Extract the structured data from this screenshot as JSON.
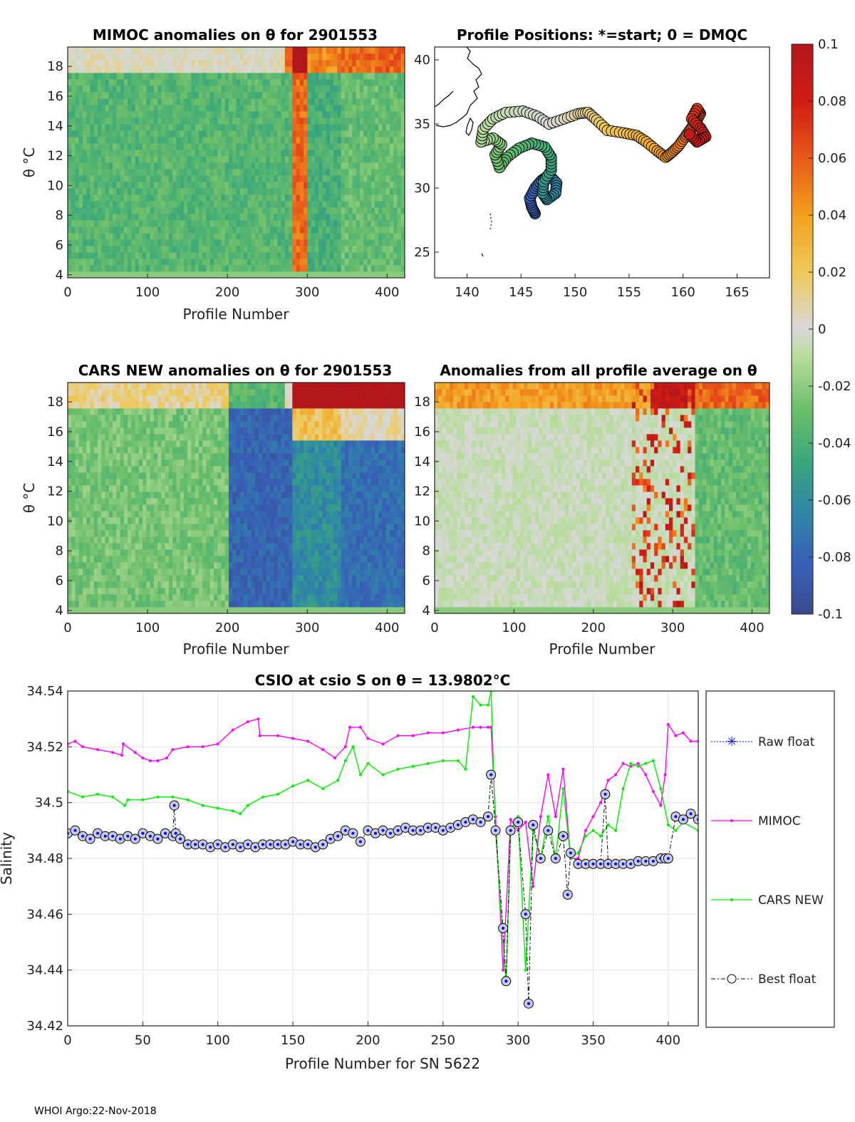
{
  "footer": "WHOI Argo:22-Nov-2018",
  "colors": {
    "mimoc": "#ff00ff",
    "cars": "#00ee00",
    "best": "#000000",
    "raw": "#0000ff",
    "marker_fill": "#c8cbe6",
    "grid": "#e3e3e3"
  },
  "colormap_stops": [
    "#3a4b8e",
    "#3860b8",
    "#2f87a6",
    "#3aa87a",
    "#6cbf6a",
    "#b7dc9a",
    "#d8d8d8",
    "#eec95a",
    "#f3a01e",
    "#e8581a",
    "#d01c14",
    "#b2171c"
  ],
  "colorbar": {
    "min": -0.1,
    "max": 0.1,
    "ticks": [
      "0.1",
      "0.08",
      "0.06",
      "0.04",
      "0.02",
      "0",
      "-0.02",
      "-0.04",
      "-0.06",
      "-0.08",
      "-0.1"
    ]
  },
  "chart_data": [
    {
      "id": "mimoc",
      "type": "heatmap",
      "title": "MIMOC anomalies on θ  for 2901553",
      "xlabel": "Profile Number",
      "ylabel": "θ °C",
      "xlim": [
        0,
        422
      ],
      "ylim": [
        3.8,
        19.3
      ],
      "xticks": [
        "0",
        "100",
        "200",
        "300",
        "400"
      ],
      "xtick_values": [
        0,
        100,
        200,
        300,
        400
      ],
      "yticks": [
        "4",
        "6",
        "8",
        "10",
        "12",
        "14",
        "16",
        "18"
      ],
      "ytick_values": [
        4,
        6,
        8,
        10,
        12,
        14,
        16,
        18
      ],
      "zones": [
        [
          0,
          280,
          -0.035
        ],
        [
          280,
          300,
          0.06
        ],
        [
          300,
          340,
          -0.04
        ],
        [
          340,
          422,
          -0.03
        ]
      ]
    },
    {
      "id": "positions",
      "type": "scatter",
      "title": "Profile Positions: *=start; 0 = DMQC",
      "xlim": [
        137,
        168
      ],
      "ylim": [
        23,
        41
      ],
      "xticks": [
        "140",
        "145",
        "150",
        "155",
        "160",
        "165"
      ],
      "xtick_values": [
        140,
        145,
        150,
        155,
        160,
        165
      ],
      "yticks": [
        "25",
        "30",
        "35",
        "40"
      ],
      "ytick_values": [
        25,
        30,
        35,
        40
      ],
      "track": [
        [
          146.3,
          28.0
        ],
        [
          146.0,
          28.5
        ],
        [
          145.8,
          29.2
        ],
        [
          146.3,
          30.0
        ],
        [
          146.9,
          30.6
        ],
        [
          147.6,
          31.0
        ],
        [
          148.3,
          30.4
        ],
        [
          148.2,
          29.6
        ],
        [
          147.4,
          29.1
        ],
        [
          147.0,
          29.6
        ],
        [
          147.1,
          30.5
        ],
        [
          147.8,
          31.4
        ],
        [
          147.8,
          32.4
        ],
        [
          147.2,
          33.2
        ],
        [
          146.0,
          33.5
        ],
        [
          144.8,
          33.1
        ],
        [
          143.7,
          32.4
        ],
        [
          143.0,
          31.6
        ],
        [
          142.6,
          32.6
        ],
        [
          143.2,
          33.4
        ],
        [
          142.4,
          33.9
        ],
        [
          141.3,
          33.6
        ],
        [
          141.5,
          34.6
        ],
        [
          142.4,
          35.4
        ],
        [
          143.6,
          35.9
        ],
        [
          145.2,
          36.0
        ],
        [
          146.5,
          35.6
        ],
        [
          147.6,
          35.0
        ],
        [
          149.0,
          35.4
        ],
        [
          150.3,
          35.8
        ],
        [
          151.2,
          35.9
        ],
        [
          152.0,
          35.3
        ],
        [
          153.0,
          34.5
        ],
        [
          154.5,
          34.3
        ],
        [
          155.7,
          34.1
        ],
        [
          156.6,
          33.6
        ],
        [
          157.6,
          32.9
        ],
        [
          158.4,
          32.4
        ],
        [
          159.0,
          32.8
        ],
        [
          159.6,
          33.3
        ],
        [
          160.2,
          34.0
        ],
        [
          160.7,
          34.6
        ],
        [
          161.2,
          35.2
        ],
        [
          161.6,
          35.8
        ],
        [
          161.3,
          36.2
        ],
        [
          160.8,
          35.4
        ],
        [
          161.6,
          34.7
        ],
        [
          162.1,
          34.0
        ],
        [
          161.3,
          33.6
        ],
        [
          160.6,
          34.2
        ]
      ]
    },
    {
      "id": "cars",
      "type": "heatmap",
      "title": "CARS NEW anomalies on θ for 2901553",
      "xlabel": "Profile Number",
      "ylabel": "θ °C",
      "xlim": [
        0,
        422
      ],
      "ylim": [
        3.8,
        19.3
      ],
      "xticks": [
        "0",
        "100",
        "200",
        "300",
        "400"
      ],
      "xtick_values": [
        0,
        100,
        200,
        300,
        400
      ],
      "yticks": [
        "4",
        "6",
        "8",
        "10",
        "12",
        "14",
        "16",
        "18"
      ],
      "ytick_values": [
        4,
        6,
        8,
        10,
        12,
        14,
        16,
        18
      ],
      "zones": [
        [
          0,
          200,
          -0.025
        ],
        [
          200,
          280,
          -0.08
        ],
        [
          280,
          340,
          -0.06
        ],
        [
          340,
          422,
          -0.075
        ]
      ]
    },
    {
      "id": "allavg",
      "type": "heatmap",
      "title": "Anomalies from all profile average on θ",
      "xlabel": "Profile Number",
      "xlim": [
        0,
        422
      ],
      "ylim": [
        3.8,
        19.3
      ],
      "xticks": [
        "0",
        "100",
        "200",
        "300",
        "400"
      ],
      "xtick_values": [
        0,
        100,
        200,
        300,
        400
      ],
      "yticks": [
        "4",
        "6",
        "8",
        "10",
        "12",
        "14",
        "16",
        "18"
      ],
      "ytick_values": [
        4,
        6,
        8,
        10,
        12,
        14,
        16,
        18
      ],
      "zones": [
        [
          0,
          330,
          0.0
        ],
        [
          330,
          422,
          -0.03
        ]
      ]
    },
    {
      "id": "salinity",
      "type": "line",
      "title": "CSIO at csio S on θ = 13.9802°C",
      "xlabel": "Profile Number for SN 5622",
      "ylabel": "Salinity",
      "xlim": [
        0,
        420
      ],
      "ylim": [
        34.42,
        34.54
      ],
      "xticks": [
        "0",
        "50",
        "100",
        "150",
        "200",
        "250",
        "300",
        "350",
        "400"
      ],
      "xtick_values": [
        0,
        50,
        100,
        150,
        200,
        250,
        300,
        350,
        400
      ],
      "yticks": [
        "34.42",
        "34.44",
        "34.46",
        "34.48",
        "34.5",
        "34.52",
        "34.54"
      ],
      "ytick_values": [
        34.42,
        34.44,
        34.46,
        34.48,
        34.5,
        34.52,
        34.54
      ],
      "legend": [
        "Raw float",
        "MIMOC",
        "CARS NEW",
        "Best float"
      ],
      "series": [
        {
          "name": "MIMOC",
          "x": [
            0,
            5,
            10,
            20,
            30,
            36,
            37,
            45,
            50,
            55,
            60,
            66,
            70,
            80,
            90,
            100,
            110,
            120,
            127,
            128,
            140,
            150,
            160,
            170,
            178,
            185,
            188,
            195,
            200,
            210,
            220,
            230,
            240,
            250,
            260,
            270,
            275,
            280,
            282,
            285,
            290,
            295,
            300,
            305,
            310,
            315,
            320,
            325,
            330,
            335,
            340,
            345,
            350,
            355,
            360,
            365,
            370,
            375,
            380,
            385,
            390,
            395,
            398,
            400,
            405,
            410,
            415,
            420
          ],
          "y": [
            34.521,
            34.522,
            34.52,
            34.519,
            34.518,
            34.517,
            34.521,
            34.518,
            34.516,
            34.515,
            34.515,
            34.516,
            34.519,
            34.52,
            34.52,
            34.521,
            34.526,
            34.529,
            34.53,
            34.524,
            34.524,
            34.523,
            34.522,
            34.519,
            34.516,
            34.52,
            34.527,
            34.527,
            34.523,
            34.521,
            34.524,
            34.524,
            34.525,
            34.525,
            34.526,
            34.527,
            34.527,
            34.527,
            34.527,
            34.495,
            34.44,
            34.494,
            34.49,
            34.493,
            34.47,
            34.495,
            34.51,
            34.495,
            34.512,
            34.48,
            34.48,
            34.49,
            34.495,
            34.5,
            34.508,
            34.51,
            34.514,
            34.513,
            34.514,
            34.51,
            34.504,
            34.499,
            34.51,
            34.528,
            34.524,
            34.525,
            34.522,
            34.522
          ]
        },
        {
          "name": "CARS NEW",
          "x": [
            0,
            10,
            20,
            30,
            38,
            40,
            50,
            60,
            70,
            80,
            90,
            100,
            110,
            115,
            120,
            130,
            140,
            150,
            160,
            170,
            180,
            185,
            190,
            195,
            200,
            210,
            220,
            230,
            240,
            250,
            260,
            265,
            270,
            275,
            280,
            282,
            285,
            290,
            292,
            295,
            300,
            305,
            310,
            315,
            320,
            325,
            330,
            335,
            340,
            345,
            350,
            355,
            360,
            365,
            370,
            375,
            380,
            385,
            390,
            395,
            400,
            405,
            410,
            420
          ],
          "y": [
            34.504,
            34.502,
            34.503,
            34.502,
            34.499,
            34.501,
            34.501,
            34.502,
            34.502,
            34.501,
            34.499,
            34.498,
            34.497,
            34.496,
            34.499,
            34.502,
            34.503,
            34.506,
            34.508,
            34.505,
            34.508,
            34.515,
            34.52,
            34.51,
            34.514,
            34.51,
            34.512,
            34.513,
            34.514,
            34.515,
            34.515,
            34.512,
            34.538,
            34.535,
            34.535,
            34.54,
            34.49,
            34.45,
            34.435,
            34.49,
            34.495,
            34.44,
            34.49,
            34.48,
            34.495,
            34.48,
            34.505,
            34.48,
            34.482,
            34.488,
            34.49,
            34.488,
            34.492,
            34.49,
            34.505,
            34.514,
            34.513,
            34.514,
            34.515,
            34.505,
            34.492,
            34.49,
            34.493,
            34.49
          ]
        },
        {
          "name": "Best float",
          "x": [
            0,
            5,
            10,
            15,
            20,
            25,
            30,
            35,
            40,
            45,
            50,
            55,
            60,
            65,
            70,
            71,
            72,
            75,
            80,
            85,
            90,
            95,
            100,
            105,
            110,
            115,
            120,
            125,
            130,
            135,
            140,
            145,
            150,
            155,
            160,
            165,
            170,
            175,
            180,
            185,
            190,
            195,
            200,
            205,
            210,
            215,
            220,
            225,
            230,
            235,
            240,
            245,
            250,
            255,
            260,
            265,
            270,
            275,
            280,
            282,
            285,
            290,
            292,
            295,
            300,
            305,
            307,
            310,
            315,
            320,
            325,
            330,
            333,
            335,
            340,
            345,
            350,
            355,
            358,
            360,
            365,
            370,
            375,
            380,
            385,
            390,
            395,
            398,
            400,
            405,
            410,
            415,
            420
          ],
          "y": [
            34.489,
            34.49,
            34.488,
            34.487,
            34.489,
            34.488,
            34.488,
            34.487,
            34.488,
            34.487,
            34.489,
            34.488,
            34.487,
            34.489,
            34.488,
            34.499,
            34.489,
            34.487,
            34.485,
            34.485,
            34.485,
            34.484,
            34.485,
            34.484,
            34.485,
            34.484,
            34.485,
            34.484,
            34.485,
            34.485,
            34.485,
            34.485,
            34.486,
            34.485,
            34.485,
            34.484,
            34.485,
            34.487,
            34.488,
            34.49,
            34.489,
            34.486,
            34.49,
            34.489,
            34.49,
            34.489,
            34.49,
            34.491,
            34.49,
            34.49,
            34.491,
            34.491,
            34.49,
            34.491,
            34.492,
            34.493,
            34.494,
            34.493,
            34.495,
            34.51,
            34.49,
            34.455,
            34.436,
            34.49,
            34.493,
            34.46,
            34.428,
            34.492,
            34.48,
            34.49,
            34.48,
            34.488,
            34.467,
            34.482,
            34.478,
            34.478,
            34.478,
            34.478,
            34.503,
            34.478,
            34.478,
            34.478,
            34.478,
            34.479,
            34.479,
            34.479,
            34.48,
            34.48,
            34.48,
            34.495,
            34.494,
            34.496,
            34.494
          ]
        }
      ]
    }
  ]
}
